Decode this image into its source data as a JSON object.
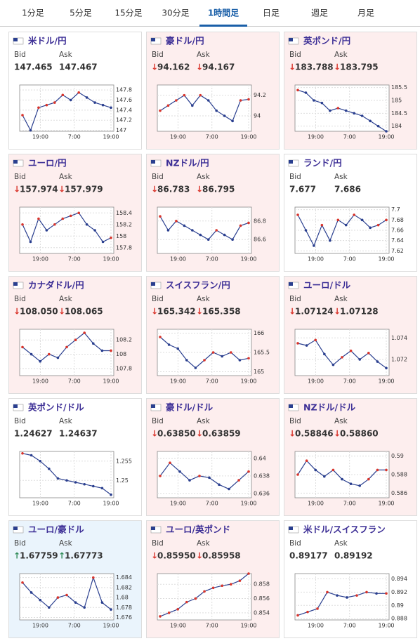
{
  "tabs": [
    "1分足",
    "5分足",
    "15分足",
    "30分足",
    "1時間足",
    "日足",
    "週足",
    "月足"
  ],
  "active_tab": 4,
  "bid_label": "Bid",
  "ask_label": "Ask",
  "x_labels": [
    "19:00",
    "7:00",
    "19:00"
  ],
  "panels": [
    {
      "name": "米ドル/円",
      "bid": "147.465",
      "ask": "147.467",
      "yticks": [
        147,
        147.2,
        147.4,
        147.6,
        147.8
      ],
      "ylim": [
        146.98,
        147.9
      ],
      "closes": [
        147.3,
        147.0,
        147.45,
        147.5,
        147.55,
        147.7,
        147.6,
        147.75,
        147.65,
        147.55,
        147.5,
        147.45
      ]
    },
    {
      "name": "豪ドル/円",
      "arrow": "↓",
      "bid": "94.162",
      "ask": "94.167",
      "yticks": [
        94,
        94.2
      ],
      "ylim": [
        93.85,
        94.3
      ],
      "closes": [
        94.05,
        94.1,
        94.15,
        94.2,
        94.1,
        94.2,
        94.15,
        94.05,
        94.0,
        93.95,
        94.15,
        94.16
      ]
    },
    {
      "name": "英ポンド/円",
      "arrow": "↓",
      "bid": "183.788",
      "ask": "183.795",
      "yticks": [
        184,
        184.5,
        185,
        185.5
      ],
      "ylim": [
        183.8,
        185.6
      ],
      "closes": [
        185.4,
        185.3,
        185.0,
        184.9,
        184.6,
        184.7,
        184.6,
        184.5,
        184.4,
        184.2,
        184.0,
        183.8
      ]
    },
    {
      "name": "ユーロ/円",
      "arrow": "↓",
      "bid": "157.974",
      "ask": "157.979",
      "yticks": [
        157.8,
        158,
        158.2,
        158.4
      ],
      "ylim": [
        157.7,
        158.5
      ],
      "closes": [
        158.2,
        157.9,
        158.3,
        158.1,
        158.2,
        158.3,
        158.35,
        158.4,
        158.2,
        158.1,
        157.9,
        157.97
      ]
    },
    {
      "name": "NZドル/円",
      "arrow": "↓",
      "bid": "86.783",
      "ask": "86.795",
      "yticks": [
        86.6,
        86.8
      ],
      "ylim": [
        86.45,
        86.95
      ],
      "closes": [
        86.85,
        86.7,
        86.8,
        86.75,
        86.7,
        86.65,
        86.6,
        86.7,
        86.65,
        86.6,
        86.75,
        86.78
      ]
    },
    {
      "name": "ランド/円",
      "bid": "7.677",
      "ask": "7.686",
      "yticks": [
        7.62,
        7.64,
        7.66,
        7.68,
        7.7
      ],
      "ylim": [
        7.615,
        7.705
      ],
      "closes": [
        7.69,
        7.66,
        7.63,
        7.67,
        7.64,
        7.68,
        7.67,
        7.69,
        7.68,
        7.665,
        7.67,
        7.68
      ]
    },
    {
      "name": "カナダドル/円",
      "arrow": "↓",
      "bid": "108.050",
      "ask": "108.065",
      "yticks": [
        107.8,
        108,
        108.2
      ],
      "ylim": [
        107.7,
        108.35
      ],
      "closes": [
        108.1,
        108.0,
        107.9,
        108.0,
        107.95,
        108.1,
        108.2,
        108.3,
        108.15,
        108.05,
        108.05
      ]
    },
    {
      "name": "スイスフラン/円",
      "arrow": "↓",
      "bid": "165.342",
      "ask": "165.358",
      "yticks": [
        165,
        165.5,
        166
      ],
      "ylim": [
        164.9,
        166.1
      ],
      "closes": [
        165.9,
        165.7,
        165.6,
        165.3,
        165.1,
        165.3,
        165.5,
        165.4,
        165.5,
        165.3,
        165.35
      ]
    },
    {
      "name": "ユーロ/ドル",
      "arrow": "↓",
      "bid": "1.07124",
      "ask": "1.07128",
      "yticks": [
        1.072,
        1.074
      ],
      "ylim": [
        1.0705,
        1.0748
      ],
      "closes": [
        1.0735,
        1.0733,
        1.0738,
        1.0725,
        1.0715,
        1.0722,
        1.0728,
        1.072,
        1.0726,
        1.0718,
        1.0712
      ]
    },
    {
      "name": "英ポンド/ドル",
      "bid": "1.24627",
      "ask": "1.24637",
      "yticks": [
        1.25,
        1.255
      ],
      "ylim": [
        1.2455,
        1.2575
      ],
      "closes": [
        1.257,
        1.2565,
        1.255,
        1.253,
        1.2505,
        1.25,
        1.2495,
        1.249,
        1.2485,
        1.248,
        1.2463
      ]
    },
    {
      "name": "豪ドル/ドル",
      "arrow": "↓",
      "bid": "0.63850",
      "ask": "0.63859",
      "yticks": [
        0.636,
        0.638,
        0.64
      ],
      "ylim": [
        0.6355,
        0.6408
      ],
      "closes": [
        0.638,
        0.6395,
        0.6385,
        0.6375,
        0.638,
        0.6378,
        0.637,
        0.6365,
        0.6375,
        0.6385
      ]
    },
    {
      "name": "NZドル/ドル",
      "arrow": "↓",
      "bid": "0.58846",
      "ask": "0.58860",
      "yticks": [
        0.586,
        0.588,
        0.59
      ],
      "ylim": [
        0.5855,
        0.5905
      ],
      "closes": [
        0.588,
        0.5895,
        0.5885,
        0.5878,
        0.5885,
        0.5875,
        0.587,
        0.5868,
        0.5875,
        0.5885,
        0.5885
      ]
    },
    {
      "name": "ユーロ/豪ドル",
      "arrow": "↑",
      "bid": "1.67759",
      "ask": "1.67773",
      "yticks": [
        1.676,
        1.678,
        1.68,
        1.682,
        1.684
      ],
      "ylim": [
        1.6755,
        1.6848
      ],
      "closes": [
        1.683,
        1.681,
        1.6795,
        1.678,
        1.68,
        1.6805,
        1.679,
        1.678,
        1.684,
        1.679,
        1.6776
      ]
    },
    {
      "name": "ユーロ/英ポンド",
      "arrow": "↓",
      "bid": "0.85950",
      "ask": "0.85958",
      "yticks": [
        0.854,
        0.856,
        0.858
      ],
      "ylim": [
        0.853,
        0.8595
      ],
      "closes": [
        0.8535,
        0.854,
        0.8545,
        0.8555,
        0.856,
        0.857,
        0.8575,
        0.8578,
        0.858,
        0.8585,
        0.8595
      ]
    },
    {
      "name": "米ドル/スイスフラン",
      "bid": "0.89177",
      "ask": "0.89192",
      "yticks": [
        0.888,
        0.89,
        0.892,
        0.894
      ],
      "ylim": [
        0.8878,
        0.8948
      ],
      "closes": [
        0.8885,
        0.889,
        0.8895,
        0.892,
        0.8915,
        0.8912,
        0.8915,
        0.892,
        0.8918,
        0.8918
      ]
    }
  ]
}
